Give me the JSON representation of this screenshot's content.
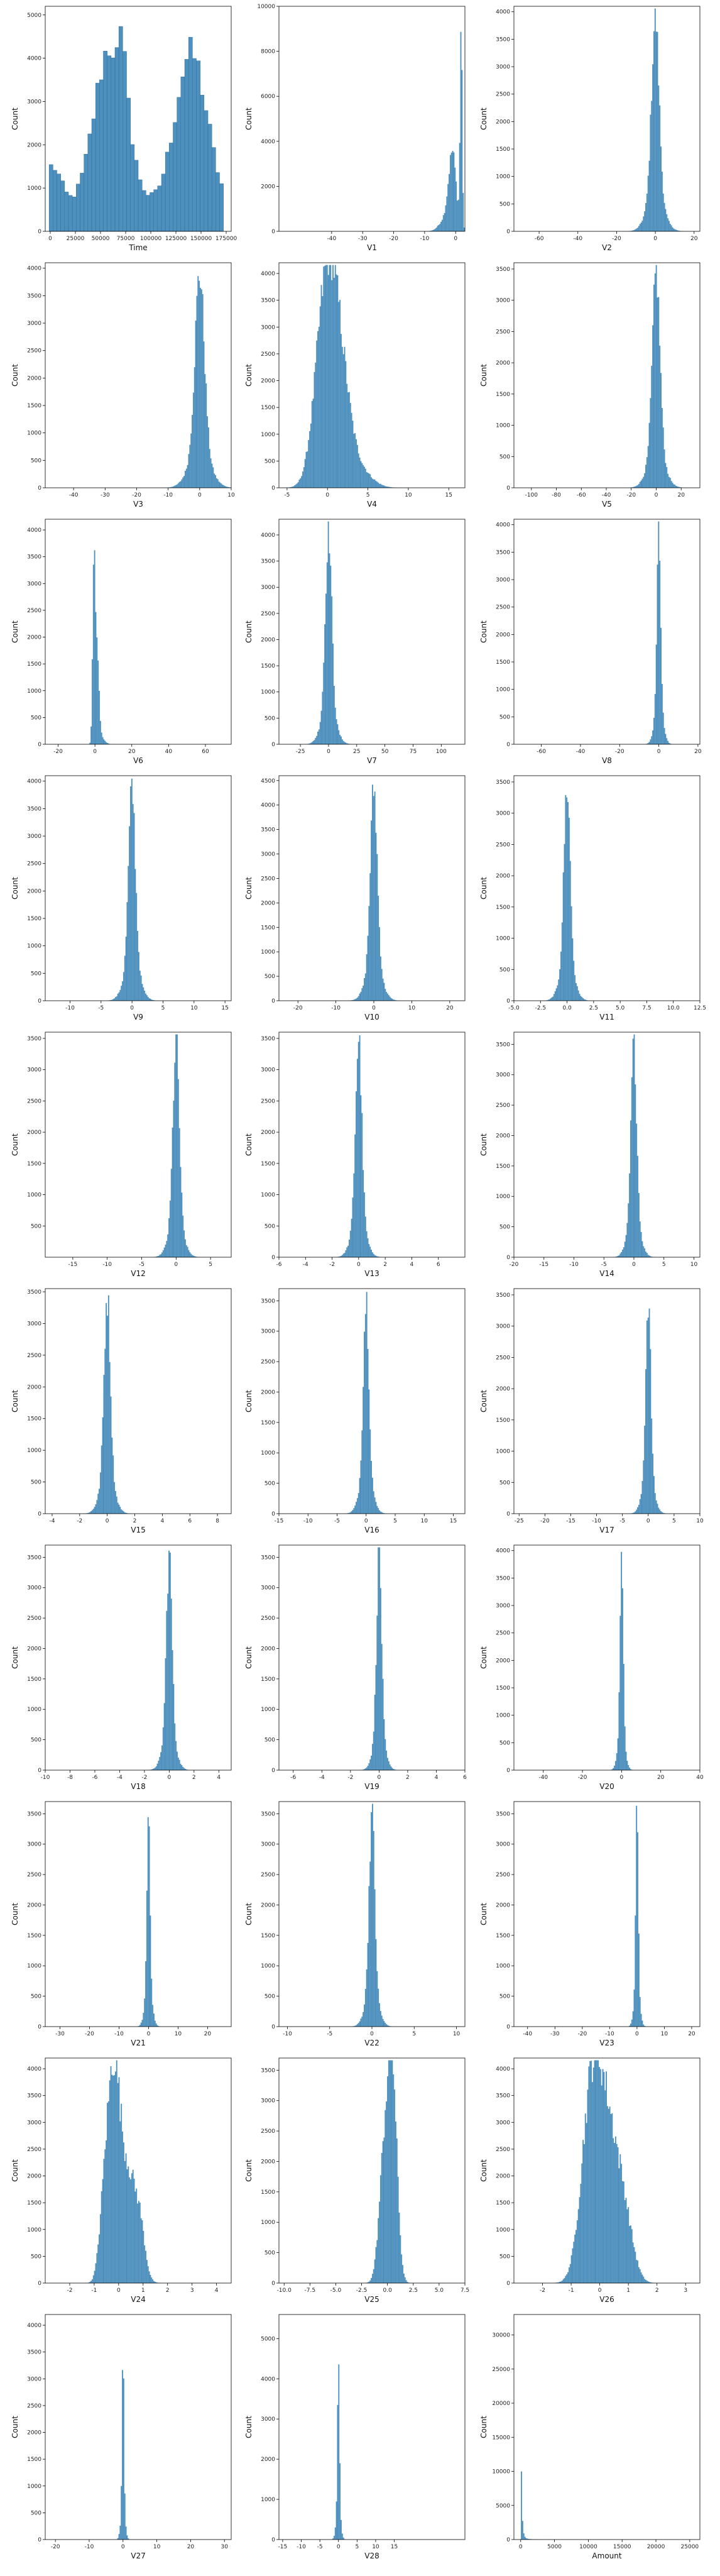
{
  "colors": {
    "bar_fill": "#4d8fbd",
    "bar_edge": "#2f6f9f",
    "axis": "#000000",
    "background": "#ffffff"
  },
  "chart_data": [
    {
      "type": "bar",
      "xlabel": "Time",
      "ylabel": "Count",
      "xlim": [
        -5000,
        180000
      ],
      "ylim": [
        0,
        5200
      ],
      "xticks": [
        0,
        25000,
        50000,
        75000,
        100000,
        125000,
        150000,
        175000
      ],
      "yticks": [
        0,
        1000,
        2000,
        3000,
        4000,
        5000
      ],
      "shape": "time",
      "xticks_fmt": "plain"
    },
    {
      "type": "bar",
      "xlabel": "V1",
      "ylabel": "Count",
      "xlim": [
        -57,
        3
      ],
      "ylim": [
        0,
        10000
      ],
      "xticks": [
        -40,
        -30,
        -20,
        -10,
        0
      ],
      "yticks": [
        0,
        2000,
        4000,
        6000,
        8000,
        10000
      ],
      "shape": "v1"
    },
    {
      "type": "bar",
      "xlabel": "V2",
      "ylabel": "Count",
      "xlim": [
        -73,
        23
      ],
      "ylim": [
        0,
        4100
      ],
      "xticks": [
        -60,
        -40,
        -20,
        0,
        20
      ],
      "yticks": [
        0,
        500,
        1000,
        1500,
        2000,
        2500,
        3000,
        3500,
        4000
      ],
      "shape": "spike",
      "center": 0,
      "width": 1.2
    },
    {
      "type": "bar",
      "xlabel": "V3",
      "ylabel": "Count",
      "xlim": [
        -49,
        10
      ],
      "ylim": [
        0,
        4100
      ],
      "xticks": [
        -40,
        -30,
        -20,
        -10,
        0,
        10
      ],
      "yticks": [
        0,
        500,
        1000,
        1500,
        2000,
        2500,
        3000,
        3500,
        4000
      ],
      "shape": "spike",
      "center": 0,
      "width": 1.5,
      "peak": 3900
    },
    {
      "type": "bar",
      "xlabel": "V4",
      "ylabel": "Count",
      "xlim": [
        -6,
        17
      ],
      "ylim": [
        0,
        4200
      ],
      "xticks": [
        -5,
        0,
        5,
        10,
        15
      ],
      "yticks": [
        0,
        500,
        1000,
        1500,
        2000,
        2500,
        3000,
        3500,
        4000
      ],
      "shape": "v4"
    },
    {
      "type": "bar",
      "xlabel": "V5",
      "ylabel": "Count",
      "xlim": [
        -114,
        35
      ],
      "ylim": [
        0,
        3600
      ],
      "xticks": [
        -100,
        -80,
        -60,
        -40,
        -20,
        0,
        20
      ],
      "yticks": [
        0,
        500,
        1000,
        1500,
        2000,
        2500,
        3000,
        3500
      ],
      "shape": "spike",
      "center": 0,
      "width": 1.2,
      "peak": 3450
    },
    {
      "type": "bar",
      "xlabel": "V6",
      "ylabel": "Count",
      "xlim": [
        -27,
        74
      ],
      "ylim": [
        0,
        4200
      ],
      "xticks": [
        -20,
        0,
        20,
        40,
        60
      ],
      "yticks": [
        0,
        500,
        1000,
        1500,
        2000,
        2500,
        3000,
        3500,
        4000
      ],
      "shape": "v6"
    },
    {
      "type": "bar",
      "xlabel": "V7",
      "ylabel": "Count",
      "xlim": [
        -44,
        121
      ],
      "ylim": [
        0,
        4300
      ],
      "xticks": [
        -50,
        -25,
        0,
        25,
        50,
        75,
        100,
        125
      ],
      "yticks": [
        0,
        500,
        1000,
        1500,
        2000,
        2500,
        3000,
        3500,
        4000
      ],
      "shape": "spike",
      "center": 0,
      "width": 1.0,
      "peak": 4150
    },
    {
      "type": "bar",
      "xlabel": "V8",
      "ylabel": "Count",
      "xlim": [
        -74,
        21
      ],
      "ylim": [
        0,
        4100
      ],
      "xticks": [
        -60,
        -40,
        -20,
        0,
        20
      ],
      "yticks": [
        0,
        500,
        1000,
        1500,
        2000,
        2500,
        3000,
        3500,
        4000
      ],
      "shape": "spike",
      "center": 0,
      "width": 0.6,
      "peak": 3800
    },
    {
      "type": "bar",
      "xlabel": "V9",
      "ylabel": "Count",
      "xlim": [
        -14,
        16
      ],
      "ylim": [
        0,
        4100
      ],
      "xticks": [
        -10,
        -5,
        0,
        5,
        10,
        15
      ],
      "yticks": [
        0,
        500,
        1000,
        1500,
        2000,
        2500,
        3000,
        3500,
        4000
      ],
      "shape": "spike",
      "center": 0,
      "width": 1.1,
      "peak": 3850
    },
    {
      "type": "bar",
      "xlabel": "V10",
      "ylabel": "Count",
      "xlim": [
        -25,
        24
      ],
      "ylim": [
        0,
        4600
      ],
      "xticks": [
        -20,
        -10,
        0,
        10,
        20
      ],
      "yticks": [
        0,
        500,
        1000,
        1500,
        2000,
        2500,
        3000,
        3500,
        4000,
        4500
      ],
      "shape": "spike",
      "center": 0,
      "width": 1.1,
      "peak": 4350
    },
    {
      "type": "bar",
      "xlabel": "V11",
      "ylabel": "Count",
      "xlim": [
        -5,
        12.5
      ],
      "ylim": [
        0,
        3600
      ],
      "xticks": [
        -5.0,
        -2.5,
        0.0,
        2.5,
        5.0,
        7.5,
        10.0,
        12.5
      ],
      "yticks": [
        0,
        500,
        1000,
        1500,
        2000,
        2500,
        3000,
        3500
      ],
      "shape": "spike",
      "center": 0,
      "width": 1.0,
      "peak": 3450,
      "xticks_fmt": "one_decimal"
    },
    {
      "type": "bar",
      "xlabel": "V12",
      "ylabel": "Count",
      "xlim": [
        -19,
        8
      ],
      "ylim": [
        0,
        3600
      ],
      "xticks": [
        -20,
        -15,
        -10,
        -5,
        0,
        5
      ],
      "yticks": [
        500,
        1000,
        1500,
        2000,
        2500,
        3000,
        3500
      ],
      "shape": "spike",
      "center": 0,
      "width": 1.0,
      "peak": 3450
    },
    {
      "type": "bar",
      "xlabel": "V13",
      "ylabel": "Count",
      "xlim": [
        -6,
        8
      ],
      "ylim": [
        0,
        3600
      ],
      "xticks": [
        -6,
        -4,
        -2,
        0,
        2,
        4,
        6
      ],
      "yticks": [
        0,
        500,
        1000,
        1500,
        2000,
        2500,
        3000,
        3500
      ],
      "shape": "spike",
      "center": 0,
      "width": 1.0,
      "peak": 3500
    },
    {
      "type": "bar",
      "xlabel": "V14",
      "ylabel": "Count",
      "xlim": [
        -20,
        11
      ],
      "ylim": [
        0,
        3700
      ],
      "xticks": [
        -20,
        -15,
        -10,
        -5,
        0,
        5,
        10
      ],
      "yticks": [
        0,
        500,
        1000,
        1500,
        2000,
        2500,
        3000,
        3500
      ],
      "shape": "spike",
      "center": 0,
      "width": 0.9,
      "peak": 3550
    },
    {
      "type": "bar",
      "xlabel": "V15",
      "ylabel": "Count",
      "xlim": [
        -4.5,
        9
      ],
      "ylim": [
        0,
        3550
      ],
      "xticks": [
        -4,
        -2,
        0,
        2,
        4,
        6,
        8
      ],
      "yticks": [
        0,
        500,
        1000,
        1500,
        2000,
        2500,
        3000,
        3500
      ],
      "shape": "spike",
      "center": 0,
      "width": 1.0,
      "peak": 3450
    },
    {
      "type": "bar",
      "xlabel": "V16",
      "ylabel": "Count",
      "xlim": [
        -15,
        17
      ],
      "ylim": [
        0,
        3700
      ],
      "xticks": [
        -15,
        -10,
        -5,
        0,
        5,
        10,
        15
      ],
      "yticks": [
        0,
        500,
        1000,
        1500,
        2000,
        2500,
        3000,
        3500
      ],
      "shape": "spike",
      "center": 0,
      "width": 0.9,
      "peak": 3550
    },
    {
      "type": "bar",
      "xlabel": "V17",
      "ylabel": "Count",
      "xlim": [
        -26,
        10
      ],
      "ylim": [
        0,
        3600
      ],
      "xticks": [
        -25,
        -20,
        -15,
        -10,
        -5,
        0,
        5,
        10
      ],
      "yticks": [
        0,
        500,
        1000,
        1500,
        2000,
        2500,
        3000,
        3500
      ],
      "shape": "spike",
      "center": 0,
      "width": 0.8,
      "peak": 3450
    },
    {
      "type": "bar",
      "xlabel": "V18",
      "ylabel": "Count",
      "xlim": [
        -10,
        5
      ],
      "ylim": [
        0,
        3700
      ],
      "xticks": [
        -10,
        -8,
        -6,
        -4,
        -2,
        0,
        2,
        4
      ],
      "yticks": [
        0,
        500,
        1000,
        1500,
        2000,
        2500,
        3000,
        3500
      ],
      "shape": "spike",
      "center": 0,
      "width": 0.9,
      "peak": 3550
    },
    {
      "type": "bar",
      "xlabel": "V19",
      "ylabel": "Count",
      "xlim": [
        -7,
        6
      ],
      "ylim": [
        0,
        3700
      ],
      "xticks": [
        -6,
        -4,
        -2,
        0,
        2,
        4,
        6
      ],
      "yticks": [
        0,
        500,
        1000,
        1500,
        2000,
        2500,
        3000,
        3500
      ],
      "shape": "spike",
      "center": 0,
      "width": 0.8,
      "peak": 3600
    },
    {
      "type": "bar",
      "xlabel": "V20",
      "ylabel": "Count",
      "xlim": [
        -55,
        40
      ],
      "ylim": [
        0,
        4100
      ],
      "xticks": [
        -40,
        -20,
        0,
        20,
        40
      ],
      "yticks": [
        0,
        500,
        1000,
        1500,
        2000,
        2500,
        3000,
        3500,
        4000
      ],
      "shape": "spike",
      "center": 0,
      "width": 0.5,
      "peak": 3900
    },
    {
      "type": "bar",
      "xlabel": "V21",
      "ylabel": "Count",
      "xlim": [
        -35,
        28
      ],
      "ylim": [
        0,
        3700
      ],
      "xticks": [
        -30,
        -20,
        -10,
        0,
        10,
        20,
        30
      ],
      "yticks": [
        0,
        500,
        1000,
        1500,
        2000,
        2500,
        3000,
        3500
      ],
      "shape": "spike",
      "center": 0,
      "width": 0.5,
      "peak": 3600
    },
    {
      "type": "bar",
      "xlabel": "V22",
      "ylabel": "Count",
      "xlim": [
        -11,
        11
      ],
      "ylim": [
        0,
        3700
      ],
      "xticks": [
        -10,
        -5,
        0,
        5,
        10
      ],
      "yticks": [
        0,
        500,
        1000,
        1500,
        2000,
        2500,
        3000,
        3500
      ],
      "shape": "spike",
      "center": 0,
      "width": 0.9,
      "peak": 3550
    },
    {
      "type": "bar",
      "xlabel": "V23",
      "ylabel": "Count",
      "xlim": [
        -45,
        23
      ],
      "ylim": [
        0,
        3700
      ],
      "xticks": [
        -40,
        -30,
        -20,
        -10,
        0,
        10,
        20
      ],
      "yticks": [
        0,
        500,
        1000,
        1500,
        2000,
        2500,
        3000,
        3500
      ],
      "shape": "spike",
      "center": 0,
      "width": 0.4,
      "peak": 3600
    },
    {
      "type": "bar",
      "xlabel": "V24",
      "ylabel": "Count",
      "xlim": [
        -3,
        4.6
      ],
      "ylim": [
        0,
        4200
      ],
      "xticks": [
        -2,
        -1,
        0,
        1,
        2,
        3,
        4
      ],
      "yticks": [
        0,
        500,
        1000,
        1500,
        2000,
        2500,
        3000,
        3500,
        4000
      ],
      "shape": "v24"
    },
    {
      "type": "bar",
      "xlabel": "V25",
      "ylabel": "Count",
      "xlim": [
        -10.5,
        7.5
      ],
      "ylim": [
        0,
        3700
      ],
      "xticks": [
        -10.0,
        -7.5,
        -5.0,
        -2.5,
        0.0,
        2.5,
        5.0,
        7.5
      ],
      "yticks": [
        0,
        500,
        1000,
        1500,
        2000,
        2500,
        3000,
        3500
      ],
      "shape": "v25",
      "xticks_fmt": "one_decimal"
    },
    {
      "type": "bar",
      "xlabel": "V26",
      "ylabel": "Count",
      "xlim": [
        -3,
        3.5
      ],
      "ylim": [
        0,
        4200
      ],
      "xticks": [
        -2,
        -1,
        0,
        1,
        2,
        3
      ],
      "yticks": [
        0,
        500,
        1000,
        1500,
        2000,
        2500,
        3000,
        3500,
        4000
      ],
      "shape": "v26"
    },
    {
      "type": "bar",
      "xlabel": "V27",
      "ylabel": "Count",
      "xlim": [
        -23,
        32
      ],
      "ylim": [
        0,
        4200
      ],
      "xticks": [
        -20,
        -10,
        0,
        10,
        20,
        30
      ],
      "yticks": [
        0,
        500,
        1000,
        1500,
        2000,
        2500,
        3000,
        3500,
        4000
      ],
      "shape": "spike",
      "center": 0,
      "width": 0.3,
      "peak": 3500
    },
    {
      "type": "bar",
      "xlabel": "V28",
      "ylabel": "Count",
      "xlim": [
        -16,
        34
      ],
      "ylim": [
        0,
        5600
      ],
      "xticks": [
        -15,
        -10,
        -5,
        0,
        5,
        10,
        15
      ],
      "yticks": [
        0,
        1000,
        2000,
        3000,
        4000,
        5000
      ],
      "shape": "spike",
      "center": 0,
      "width": 0.3,
      "peak": 5100
    },
    {
      "type": "bar",
      "xlabel": "Amount",
      "ylabel": "Count",
      "xlim": [
        -1000,
        26500
      ],
      "ylim": [
        0,
        33000
      ],
      "xticks": [
        0,
        5000,
        10000,
        15000,
        20000,
        25000
      ],
      "yticks": [
        0,
        5000,
        10000,
        15000,
        20000,
        25000,
        30000
      ],
      "shape": "amount"
    }
  ]
}
